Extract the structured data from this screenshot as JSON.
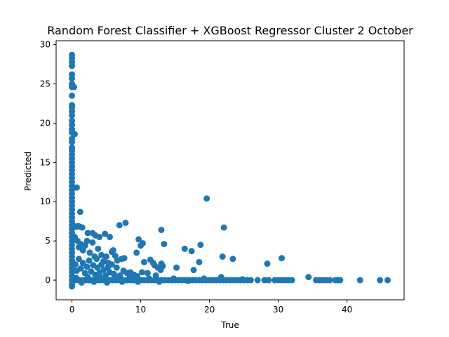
{
  "chart_data": {
    "type": "scatter",
    "title": "Random Forest Classifier + XGBoost Regressor Cluster 2 October",
    "xlabel": "True",
    "ylabel": "Predicted",
    "xlim": [
      -2.3,
      48.3
    ],
    "ylim": [
      -2.5,
      30.5
    ],
    "xticks": [
      0,
      10,
      20,
      30,
      40
    ],
    "yticks": [
      0,
      5,
      10,
      15,
      20,
      25,
      30
    ],
    "grid": false,
    "legend": "none",
    "marker_color": "#1f77b4",
    "series": [
      {
        "points": [
          [
            0,
            28.7
          ],
          [
            0,
            28.3
          ],
          [
            0,
            27.8
          ],
          [
            0,
            27.3
          ],
          [
            0,
            26.2
          ],
          [
            0,
            25.7
          ],
          [
            0,
            25.0
          ],
          [
            0,
            24.6
          ],
          [
            0.3,
            24.6
          ],
          [
            0,
            23.5
          ],
          [
            0,
            22.3
          ],
          [
            0,
            22.0
          ],
          [
            0,
            21.5
          ],
          [
            0,
            21.0
          ],
          [
            0,
            20.3
          ],
          [
            0,
            19.8
          ],
          [
            0,
            19.2
          ],
          [
            0,
            18.8
          ],
          [
            0.4,
            18.6
          ],
          [
            0,
            18.0
          ],
          [
            0,
            17.6
          ],
          [
            0,
            16.9
          ],
          [
            0,
            16.5
          ],
          [
            0,
            16.0
          ],
          [
            0,
            15.5
          ],
          [
            0,
            15.0
          ],
          [
            0,
            14.5
          ],
          [
            0,
            14.0
          ],
          [
            0,
            13.5
          ],
          [
            0,
            13.0
          ],
          [
            0,
            12.5
          ],
          [
            0,
            12.0
          ],
          [
            0.3,
            11.8
          ],
          [
            0.7,
            11.8
          ],
          [
            0,
            11.5
          ],
          [
            0,
            11.0
          ],
          [
            0,
            10.5
          ],
          [
            0,
            10.0
          ],
          [
            0,
            9.5
          ],
          [
            0,
            9.0
          ],
          [
            0,
            8.5
          ],
          [
            0,
            8.0
          ],
          [
            0,
            7.5
          ],
          [
            0,
            7.0
          ],
          [
            0,
            6.5
          ],
          [
            0,
            6.0
          ],
          [
            0,
            5.5
          ],
          [
            0,
            5.0
          ],
          [
            0,
            4.5
          ],
          [
            0,
            4.0
          ],
          [
            0,
            3.5
          ],
          [
            0,
            3.0
          ],
          [
            0,
            2.5
          ],
          [
            0,
            2.0
          ],
          [
            0,
            1.5
          ],
          [
            0,
            1.0
          ],
          [
            0,
            0.5
          ],
          [
            0,
            0.0
          ],
          [
            0,
            -0.5
          ],
          [
            0,
            -0.8
          ],
          [
            0.3,
            6.9
          ],
          [
            0.6,
            6.8
          ],
          [
            0.9,
            6.9
          ],
          [
            1.2,
            6.8
          ],
          [
            1.5,
            6.7
          ],
          [
            1.2,
            8.7
          ],
          [
            0.4,
            5.5
          ],
          [
            0.8,
            5.0
          ],
          [
            1.0,
            4.2
          ],
          [
            1.3,
            4.6
          ],
          [
            1.6,
            3.8
          ],
          [
            1.9,
            4.4
          ],
          [
            2.2,
            5.0
          ],
          [
            2.3,
            6.0
          ],
          [
            2.6,
            3.5
          ],
          [
            3.0,
            4.8
          ],
          [
            3.0,
            6.0
          ],
          [
            3.3,
            3.0
          ],
          [
            3.4,
            5.7
          ],
          [
            3.6,
            2.7
          ],
          [
            3.8,
            4.0
          ],
          [
            4.0,
            5.5
          ],
          [
            4.3,
            3.2
          ],
          [
            4.6,
            2.4
          ],
          [
            4.8,
            5.9
          ],
          [
            5.0,
            3.0
          ],
          [
            5.3,
            2.2
          ],
          [
            5.5,
            5.5
          ],
          [
            5.8,
            3.6
          ],
          [
            6.0,
            3.8
          ],
          [
            6.3,
            3.1
          ],
          [
            6.6,
            2.5
          ],
          [
            6.9,
            7.0
          ],
          [
            7.2,
            2.7
          ],
          [
            7.6,
            2.8
          ],
          [
            7.8,
            7.3
          ],
          [
            9.4,
            3.5
          ],
          [
            9.7,
            5.2
          ],
          [
            10.0,
            4.4
          ],
          [
            10.3,
            4.7
          ],
          [
            10.5,
            2.3
          ],
          [
            11.4,
            2.6
          ],
          [
            12.0,
            1.9
          ],
          [
            12.5,
            1.6
          ],
          [
            12.9,
            1.3
          ],
          [
            13.0,
            6.4
          ],
          [
            13.0,
            2.1
          ],
          [
            13.4,
            4.6
          ],
          [
            15.2,
            1.6
          ],
          [
            16.4,
            4.0
          ],
          [
            17.4,
            3.7
          ],
          [
            17.7,
            1.3
          ],
          [
            18.5,
            2.3
          ],
          [
            18.7,
            4.5
          ],
          [
            19.6,
            10.4
          ],
          [
            21.9,
            3.0
          ],
          [
            22.1,
            6.7
          ],
          [
            23.4,
            2.7
          ],
          [
            28.4,
            2.1
          ],
          [
            30.5,
            2.8
          ],
          [
            34.4,
            0.4
          ],
          [
            0.5,
            2.0
          ],
          [
            0.7,
            1.2
          ],
          [
            1.0,
            2.7
          ],
          [
            1.3,
            1.5
          ],
          [
            1.6,
            2.2
          ],
          [
            1.9,
            0.9
          ],
          [
            2.2,
            1.7
          ],
          [
            2.5,
            2.5
          ],
          [
            2.8,
            1.1
          ],
          [
            3.1,
            1.9
          ],
          [
            3.4,
            0.7
          ],
          [
            3.7,
            1.6
          ],
          [
            4.0,
            0.9
          ],
          [
            4.3,
            2.0
          ],
          [
            4.6,
            1.3
          ],
          [
            4.9,
            0.6
          ],
          [
            5.2,
            1.6
          ],
          [
            5.5,
            1.0
          ],
          [
            5.8,
            2.0
          ],
          [
            6.1,
            0.8
          ],
          [
            6.5,
            1.6
          ],
          [
            7.0,
            0.6
          ],
          [
            7.5,
            1.2
          ],
          [
            8.0,
            0.9
          ],
          [
            8.5,
            1.0
          ],
          [
            9.0,
            0.7
          ],
          [
            9.5,
            0.5
          ],
          [
            11.0,
            0.9
          ],
          [
            11.8,
            2.2
          ],
          [
            12.2,
            0.6
          ],
          [
            13.2,
            1.8
          ],
          [
            10.2,
            1.0
          ],
          [
            0.5,
            0.0
          ],
          [
            1.0,
            0.0
          ],
          [
            1.5,
            0.0
          ],
          [
            2.0,
            0.0
          ],
          [
            2.5,
            0.0
          ],
          [
            3.0,
            0.0
          ],
          [
            3.5,
            0.0
          ],
          [
            4.0,
            0.0
          ],
          [
            4.5,
            0.0
          ],
          [
            5.0,
            0.0
          ],
          [
            5.5,
            0.0
          ],
          [
            6.0,
            0.0
          ],
          [
            6.5,
            0.0
          ],
          [
            7.0,
            0.0
          ],
          [
            7.5,
            0.0
          ],
          [
            8.0,
            0.0
          ],
          [
            8.5,
            0.0
          ],
          [
            9.0,
            0.0
          ],
          [
            9.5,
            0.0
          ],
          [
            10.0,
            0.0
          ],
          [
            10.5,
            0.0
          ],
          [
            11.0,
            0.0
          ],
          [
            11.5,
            0.0
          ],
          [
            12.0,
            0.0
          ],
          [
            12.5,
            0.0
          ],
          [
            13.0,
            0.0
          ],
          [
            13.5,
            0.0
          ],
          [
            14.0,
            0.0
          ],
          [
            14.5,
            0.0
          ],
          [
            15.0,
            0.0
          ],
          [
            15.5,
            0.0
          ],
          [
            16.0,
            0.0
          ],
          [
            16.5,
            0.0
          ],
          [
            17.0,
            0.0
          ],
          [
            17.5,
            0.0
          ],
          [
            18.0,
            0.0
          ],
          [
            18.5,
            0.0
          ],
          [
            19.0,
            0.0
          ],
          [
            19.5,
            0.0
          ],
          [
            20.0,
            0.0
          ],
          [
            20.5,
            0.0
          ],
          [
            21.0,
            0.0
          ],
          [
            21.5,
            0.0
          ],
          [
            22.0,
            0.0
          ],
          [
            22.5,
            0.0
          ],
          [
            23.0,
            0.0
          ],
          [
            23.5,
            0.0
          ],
          [
            24.0,
            0.0
          ],
          [
            24.5,
            0.0
          ],
          [
            25.0,
            0.0
          ],
          [
            25.5,
            0.0
          ],
          [
            26.0,
            0.0
          ],
          [
            27.0,
            0.0
          ],
          [
            28.0,
            0.0
          ],
          [
            28.6,
            0.0
          ],
          [
            29.5,
            0.0
          ],
          [
            30.0,
            0.0
          ],
          [
            30.5,
            0.0
          ],
          [
            31.0,
            0.0
          ],
          [
            31.5,
            0.0
          ],
          [
            32.0,
            0.0
          ],
          [
            35.5,
            0.0
          ],
          [
            36.0,
            0.0
          ],
          [
            36.5,
            0.0
          ],
          [
            37.0,
            0.0
          ],
          [
            37.5,
            0.0
          ],
          [
            38.3,
            0.0
          ],
          [
            38.7,
            0.0
          ],
          [
            39.0,
            0.0
          ],
          [
            41.9,
            0.0
          ],
          [
            44.8,
            0.0
          ],
          [
            45.9,
            0.0
          ],
          [
            0.6,
            0.3
          ],
          [
            1.4,
            -0.3
          ],
          [
            2.3,
            0.4
          ],
          [
            3.2,
            -0.2
          ],
          [
            4.1,
            0.3
          ],
          [
            5.1,
            -0.3
          ],
          [
            6.2,
            0.4
          ],
          [
            7.3,
            -0.2
          ],
          [
            8.4,
            0.3
          ],
          [
            9.6,
            -0.2
          ],
          [
            11.2,
            0.2
          ],
          [
            12.7,
            -0.2
          ],
          [
            14.8,
            0.2
          ],
          [
            16.9,
            -0.1
          ],
          [
            19.2,
            0.2
          ],
          [
            21.7,
            0.4
          ],
          [
            24.8,
            0.1
          ]
        ]
      }
    ]
  }
}
